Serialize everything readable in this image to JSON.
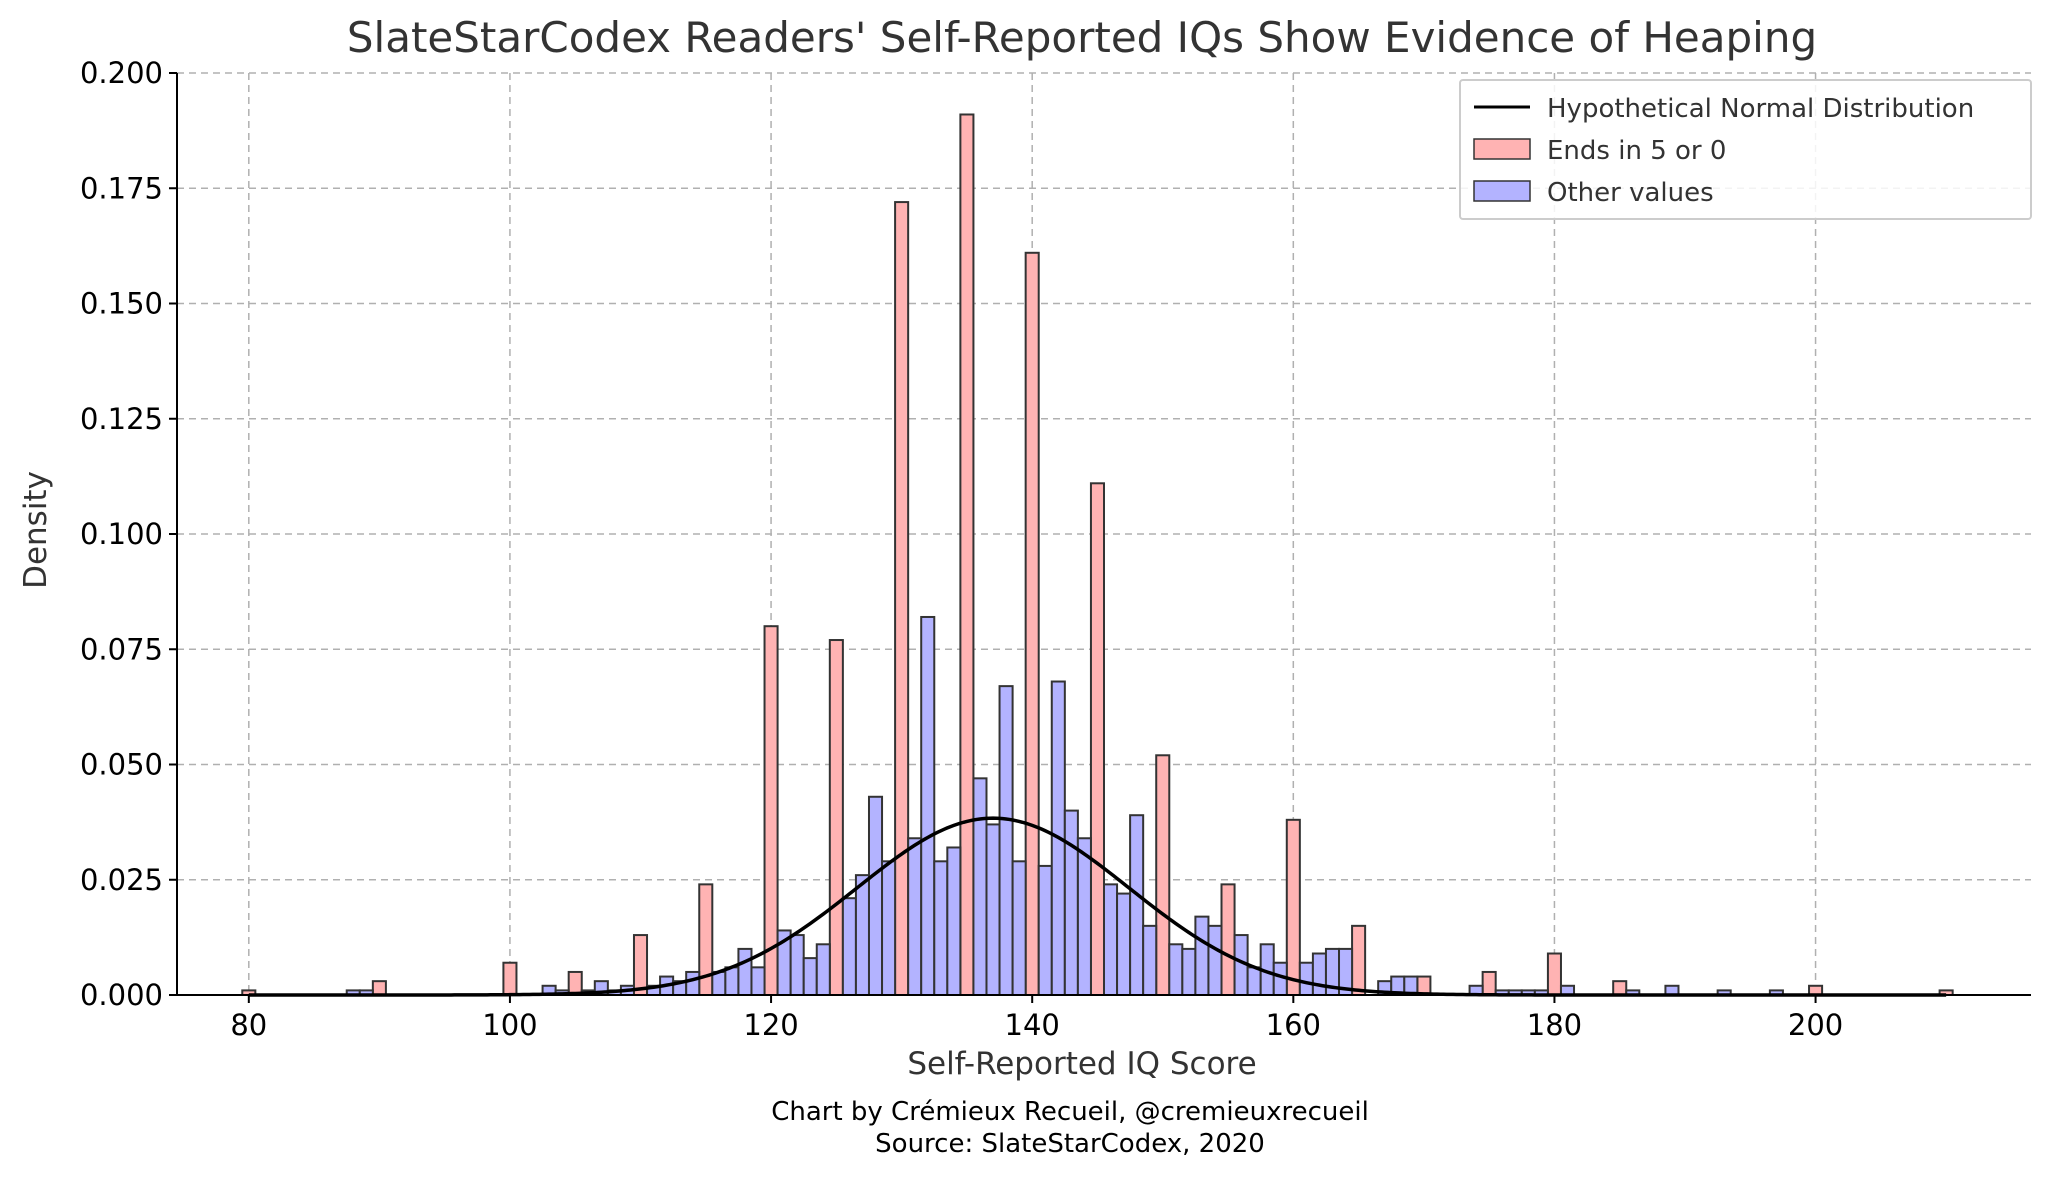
{
  "chart_data": {
    "type": "bar",
    "title": "SlateStarCodex Readers' Self-Reported IQs Show Evidence of Heaping",
    "xlabel": "Self-Reported IQ Score",
    "ylabel": "Density",
    "xlim": [
      74.5,
      216.5
    ],
    "ylim": [
      0,
      0.2
    ],
    "xticks": [
      80,
      100,
      120,
      140,
      160,
      180,
      200
    ],
    "yticks": [
      0.0,
      0.025,
      0.05,
      0.075,
      0.1,
      0.125,
      0.15,
      0.175,
      0.2
    ],
    "ytick_labels": [
      "0.000",
      "0.025",
      "0.050",
      "0.075",
      "0.100",
      "0.125",
      "0.150",
      "0.175",
      "0.200"
    ],
    "grid": true,
    "legend_position": "top-right",
    "colors": {
      "ends_5_0": "#ffb3b3",
      "other": "#b3b3ff",
      "edge": "#333333",
      "normal_line": "#000000",
      "grid": "#b0b0b0"
    },
    "legend": [
      {
        "label": "Hypothetical Normal Distribution",
        "kind": "line",
        "color": "#000000"
      },
      {
        "label": "Ends in 5 or 0",
        "kind": "patch",
        "color": "#ffb3b3"
      },
      {
        "label": "Other values",
        "kind": "patch",
        "color": "#b3b3ff"
      }
    ],
    "bin_width": 1,
    "series": [
      {
        "name": "Ends in 5 or 0",
        "color": "#ffb3b3",
        "x": [
          80,
          90,
          100,
          105,
          110,
          115,
          120,
          125,
          130,
          135,
          140,
          145,
          150,
          155,
          160,
          165,
          170,
          175,
          180,
          185,
          200,
          210
        ],
        "values": [
          0.001,
          0.003,
          0.007,
          0.005,
          0.013,
          0.024,
          0.08,
          0.077,
          0.172,
          0.191,
          0.161,
          0.111,
          0.052,
          0.024,
          0.038,
          0.015,
          0.004,
          0.005,
          0.009,
          0.003,
          0.002,
          0.001
        ]
      },
      {
        "name": "Other values",
        "color": "#b3b3ff",
        "x": [
          88,
          89,
          103,
          104,
          106,
          107,
          108,
          109,
          111,
          112,
          113,
          114,
          116,
          117,
          118,
          119,
          121,
          122,
          123,
          124,
          126,
          127,
          128,
          129,
          131,
          132,
          133,
          134,
          136,
          137,
          138,
          139,
          141,
          142,
          143,
          144,
          146,
          147,
          148,
          149,
          151,
          152,
          153,
          154,
          156,
          157,
          158,
          159,
          161,
          162,
          163,
          164,
          167,
          168,
          169,
          174,
          176,
          177,
          178,
          179,
          181,
          186,
          189,
          193,
          197
        ],
        "values": [
          0.001,
          0.001,
          0.002,
          0.001,
          0.001,
          0.003,
          0.001,
          0.002,
          0.002,
          0.004,
          0.003,
          0.005,
          0.005,
          0.006,
          0.01,
          0.006,
          0.014,
          0.013,
          0.008,
          0.011,
          0.021,
          0.026,
          0.043,
          0.029,
          0.034,
          0.082,
          0.029,
          0.032,
          0.047,
          0.037,
          0.067,
          0.029,
          0.028,
          0.068,
          0.04,
          0.034,
          0.024,
          0.022,
          0.039,
          0.015,
          0.011,
          0.01,
          0.017,
          0.015,
          0.013,
          0.006,
          0.011,
          0.007,
          0.007,
          0.009,
          0.01,
          0.01,
          0.003,
          0.004,
          0.004,
          0.002,
          0.001,
          0.001,
          0.001,
          0.001,
          0.002,
          0.001,
          0.002,
          0.001,
          0.001
        ]
      }
    ],
    "normal_curve": {
      "name": "Hypothetical Normal Distribution",
      "mean": 137,
      "sd": 10.4,
      "x_range": [
        80,
        210
      ]
    },
    "annotations": [
      "Chart by Crémieux Recueil, @cremieuxrecueil",
      "Source: SlateStarCodex, 2020"
    ]
  }
}
